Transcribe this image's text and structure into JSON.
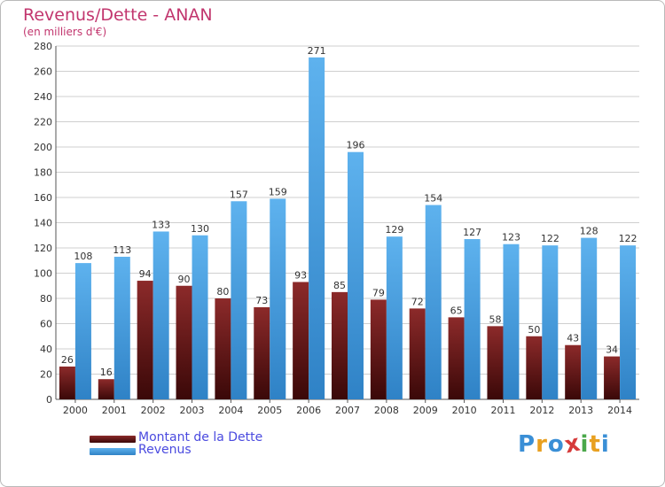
{
  "title": "Revenus/Dette - ANAN",
  "subtitle": "(en milliers d'€)",
  "legend": [
    {
      "label": "Montant de la Dette",
      "color": "#6b1d1d"
    },
    {
      "label": "Revenus",
      "color": "#4aa0e0"
    }
  ],
  "logo": {
    "letters": [
      "P",
      "r",
      "o",
      "x",
      "i",
      "t",
      "i"
    ]
  },
  "colors": {
    "title": "#c2366e",
    "legend_text": "#4a4adf",
    "dette_top": "#8c2a2a",
    "dette_bottom": "#3a0808",
    "revenus_top": "#5eb2ee",
    "revenus_bottom": "#2f82c6",
    "grid": "#cfcfcf"
  },
  "chart_data": {
    "type": "bar",
    "categories": [
      "2000",
      "2001",
      "2002",
      "2003",
      "2004",
      "2005",
      "2006",
      "2007",
      "2008",
      "2009",
      "2010",
      "2011",
      "2012",
      "2013",
      "2014"
    ],
    "series": [
      {
        "name": "Montant de la Dette",
        "values": [
          26,
          16,
          94,
          90,
          80,
          73,
          93,
          85,
          79,
          72,
          65,
          58,
          50,
          43,
          34
        ]
      },
      {
        "name": "Revenus",
        "values": [
          108,
          113,
          133,
          130,
          157,
          159,
          271,
          196,
          129,
          154,
          127,
          123,
          122,
          128,
          122
        ]
      }
    ],
    "title": "Revenus/Dette - ANAN",
    "subtitle": "(en milliers d'€)",
    "ylim": [
      0,
      280
    ],
    "yticks": [
      0,
      20,
      40,
      60,
      80,
      100,
      120,
      140,
      160,
      180,
      200,
      220,
      240,
      260,
      280
    ],
    "grid": true,
    "legend_position": "bottom-left"
  }
}
